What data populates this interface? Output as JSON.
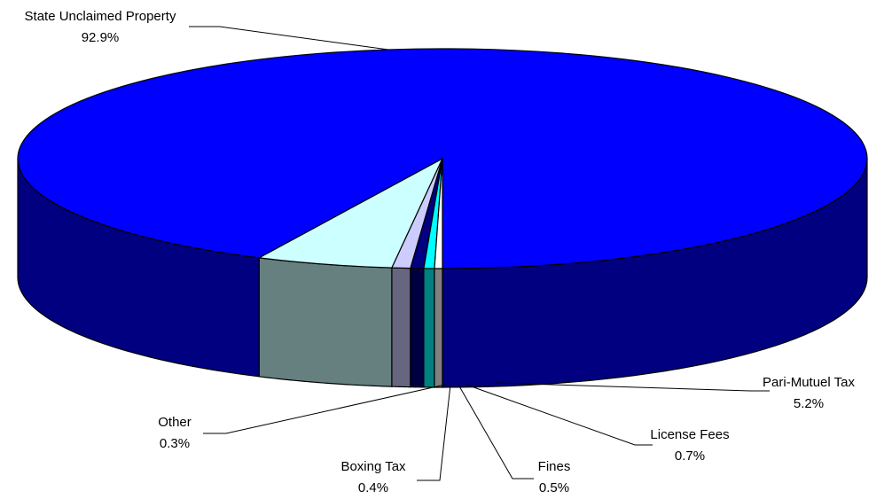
{
  "chart_data": {
    "type": "pie",
    "style": "3d",
    "slices": [
      {
        "label": "State Unclaimed Property",
        "percent_label": "92.9%",
        "value": 92.9,
        "color": "#0000FF"
      },
      {
        "label": "Pari-Mutuel Tax",
        "percent_label": "5.2%",
        "value": 5.2,
        "color": "#CCFFFF"
      },
      {
        "label": "License Fees",
        "percent_label": "0.7%",
        "value": 0.7,
        "color": "#CCCCFF"
      },
      {
        "label": "Fines",
        "percent_label": "0.5%",
        "value": 0.5,
        "color": "#000080"
      },
      {
        "label": "Boxing Tax",
        "percent_label": "0.4%",
        "value": 0.4,
        "color": "#00FFFF"
      },
      {
        "label": "Other",
        "percent_label": "0.3%",
        "value": 0.3,
        "color": "#FFFFFF"
      }
    ]
  }
}
